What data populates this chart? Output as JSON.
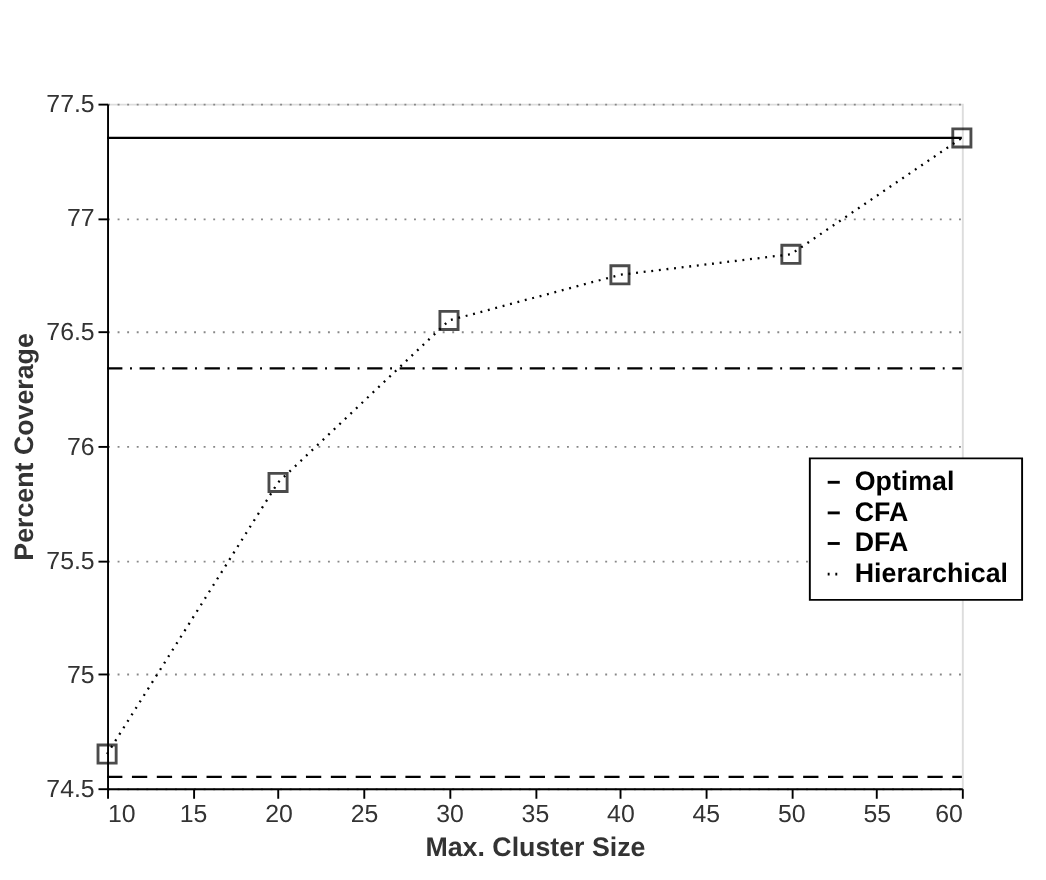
{
  "chart_data": {
    "type": "line",
    "xlabel": "Max. Cluster Size",
    "ylabel": "Percent Coverage",
    "x": [
      10,
      20,
      30,
      40,
      50,
      60
    ],
    "xlim": [
      10,
      60
    ],
    "xticks": [
      10,
      15,
      20,
      25,
      30,
      35,
      40,
      45,
      50,
      55,
      60
    ],
    "ylim": [
      74.5,
      77.5
    ],
    "yticks": [
      74.5,
      75,
      75.5,
      76,
      76.5,
      77,
      77.5
    ],
    "grid": "y",
    "legend": "right",
    "series": [
      {
        "name": "Optimal",
        "color": "#000000",
        "line_style": "solid",
        "marker": "none",
        "values": [
          77.35,
          77.35,
          77.35,
          77.35,
          77.35,
          77.35
        ]
      },
      {
        "name": "CFA",
        "color": "#000000",
        "line_style": "dashdot",
        "marker": "none",
        "values": [
          76.34,
          76.34,
          76.34,
          76.34,
          76.34,
          76.34
        ]
      },
      {
        "name": "DFA",
        "color": "#000000",
        "line_style": "dashed",
        "marker": "none",
        "values": [
          74.55,
          74.55,
          74.55,
          74.55,
          74.55,
          74.55
        ]
      },
      {
        "name": "Hierarchical",
        "color": "#000000",
        "line_style": "dotted",
        "marker": "square",
        "values": [
          74.65,
          75.84,
          76.55,
          76.75,
          76.84,
          77.35
        ]
      }
    ]
  }
}
